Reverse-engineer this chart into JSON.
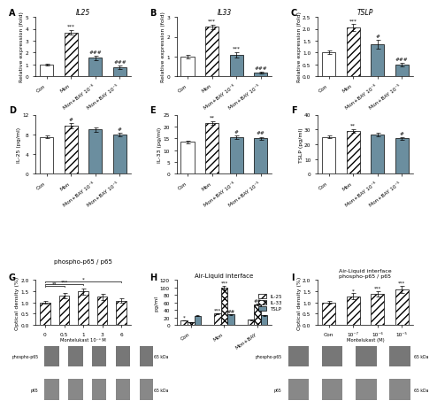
{
  "panel_A": {
    "title": "IL25",
    "ylabel": "Relative expression (fold)",
    "categories": [
      "Con",
      "Mon",
      "Mon+BAY 10⁻⁶",
      "Mon+BAY 10⁻⁵"
    ],
    "values": [
      1.0,
      3.7,
      1.55,
      0.75
    ],
    "errors": [
      0.08,
      0.18,
      0.2,
      0.12
    ],
    "colors": [
      "white",
      "white",
      "#6b8e9f",
      "#6b8e9f"
    ],
    "hatch": [
      "",
      "////",
      "",
      ""
    ],
    "ylim": [
      0,
      5
    ],
    "yticks": [
      0,
      1,
      2,
      3,
      4,
      5
    ],
    "sigs": [
      [
        1,
        "***"
      ],
      [
        2,
        "###"
      ],
      [
        3,
        "###"
      ]
    ]
  },
  "panel_B": {
    "title": "IL33",
    "ylabel": "Relative expression (fold)",
    "categories": [
      "Con",
      "Mon",
      "Mon+BAY 10⁻⁶",
      "Mon+BAY 10⁻⁵"
    ],
    "values": [
      1.0,
      2.5,
      1.08,
      0.18
    ],
    "errors": [
      0.08,
      0.12,
      0.15,
      0.05
    ],
    "colors": [
      "white",
      "white",
      "#6b8e9f",
      "#6b8e9f"
    ],
    "hatch": [
      "",
      "////",
      "",
      ""
    ],
    "ylim": [
      0,
      3
    ],
    "yticks": [
      0,
      1,
      2,
      3
    ],
    "sigs": [
      [
        1,
        "***"
      ],
      [
        2,
        "***"
      ],
      [
        3,
        "###"
      ]
    ]
  },
  "panel_C": {
    "title": "TSLP",
    "ylabel": "Relative expression (fold)",
    "categories": [
      "Con",
      "Mon",
      "Mon+BAY 10⁻⁶",
      "Mon+BAY 10⁻⁵"
    ],
    "values": [
      1.0,
      2.05,
      1.35,
      0.5
    ],
    "errors": [
      0.08,
      0.14,
      0.18,
      0.07
    ],
    "colors": [
      "white",
      "white",
      "#6b8e9f",
      "#6b8e9f"
    ],
    "hatch": [
      "",
      "////",
      "",
      ""
    ],
    "ylim": [
      0,
      2.5
    ],
    "yticks": [
      0.0,
      0.5,
      1.0,
      1.5,
      2.0,
      2.5
    ],
    "sigs": [
      [
        1,
        "***"
      ],
      [
        2,
        "#"
      ],
      [
        3,
        "###"
      ]
    ]
  },
  "panel_D": {
    "ylabel": "IL-25 (pg/ml)",
    "categories": [
      "Con",
      "Mon",
      "Mon+BAY 10⁻⁶",
      "Mon+BAY 10⁻⁵"
    ],
    "values": [
      7.5,
      9.8,
      9.0,
      8.0
    ],
    "errors": [
      0.3,
      0.5,
      0.4,
      0.35
    ],
    "colors": [
      "white",
      "white",
      "#6b8e9f",
      "#6b8e9f"
    ],
    "hatch": [
      "",
      "////",
      "",
      ""
    ],
    "ylim": [
      0,
      12
    ],
    "yticks": [
      0,
      4,
      8,
      12
    ],
    "sigs": [
      [
        1,
        "#"
      ],
      [
        3,
        "#"
      ]
    ]
  },
  "panel_E": {
    "ylabel": "IL-33 (pg/ml)",
    "categories": [
      "Con",
      "Mon",
      "Mon+BAY 10⁻⁶",
      "Mon+BAY 10⁻⁵"
    ],
    "values": [
      13.5,
      21.5,
      15.5,
      15.0
    ],
    "errors": [
      0.6,
      0.9,
      0.7,
      0.65
    ],
    "colors": [
      "white",
      "white",
      "#6b8e9f",
      "#6b8e9f"
    ],
    "hatch": [
      "",
      "////",
      "",
      ""
    ],
    "ylim": [
      0,
      25
    ],
    "yticks": [
      0,
      5,
      10,
      15,
      20,
      25
    ],
    "sigs": [
      [
        1,
        "**"
      ],
      [
        2,
        "#"
      ],
      [
        3,
        "##"
      ]
    ]
  },
  "panel_F": {
    "ylabel": "TSLP (pg/ml)",
    "categories": [
      "Con",
      "Mon",
      "Mon+BAY 10⁻⁶",
      "Mon+BAY 10⁻⁵"
    ],
    "values": [
      25.0,
      29.0,
      26.5,
      24.0
    ],
    "errors": [
      0.9,
      1.2,
      1.1,
      1.0
    ],
    "colors": [
      "white",
      "white",
      "#6b8e9f",
      "#6b8e9f"
    ],
    "hatch": [
      "",
      "////",
      "",
      ""
    ],
    "ylim": [
      0,
      40
    ],
    "yticks": [
      0,
      10,
      20,
      30,
      40
    ],
    "sigs": [
      [
        1,
        "**"
      ],
      [
        3,
        "#"
      ]
    ]
  },
  "panel_G": {
    "title": "phospho-p65 / p65",
    "ylabel": "Optical density (%)",
    "categories": [
      "0",
      "0.5",
      "1",
      "3",
      "6"
    ],
    "xlabel": "Montelukast 10⁻⁶ M",
    "values": [
      1.0,
      1.3,
      1.48,
      1.25,
      1.08
    ],
    "errors": [
      0.06,
      0.12,
      0.15,
      0.13,
      0.1
    ],
    "hatch": [
      "////",
      "////",
      "////",
      "////",
      "////"
    ],
    "ylim": [
      0,
      2.0
    ],
    "yticks": [
      0,
      0.5,
      1.0,
      1.5,
      2.0
    ],
    "bracket_pairs": [
      [
        0,
        1,
        "**"
      ],
      [
        0,
        2,
        "***"
      ],
      [
        0,
        4,
        "*"
      ]
    ]
  },
  "panel_H": {
    "title": "Air-Liquid interface",
    "ylabel": "pg/ml",
    "group_labels": [
      "Con",
      "Mon",
      "Mon+BAY"
    ],
    "series": [
      "IL-25",
      "IL-33",
      "TSLP"
    ],
    "values_by_series": [
      [
        12.0,
        30.0,
        13.5
      ],
      [
        8.0,
        100.0,
        55.0
      ],
      [
        25.0,
        28.0,
        26.0
      ]
    ],
    "errors_by_series": [
      [
        0.8,
        1.5,
        1.0
      ],
      [
        0.6,
        4.5,
        3.0
      ],
      [
        1.2,
        1.5,
        1.3
      ]
    ],
    "colors": [
      "white",
      "white",
      "#6b8e9f"
    ],
    "hatch": [
      "////",
      "xxxx",
      ""
    ],
    "ylim": [
      0,
      120
    ],
    "yticks": [
      0,
      20,
      40,
      60,
      80,
      100,
      120
    ],
    "sigs_by_bar": [
      [
        [
          0,
          0,
          "*"
        ],
        [
          0,
          1,
          "***"
        ]
      ],
      [
        [
          1,
          1,
          "***"
        ],
        [
          1,
          1,
          "##"
        ]
      ],
      [
        [
          2,
          1,
          "##"
        ]
      ]
    ]
  },
  "panel_I": {
    "title_line1": "Air-Liquid interface",
    "title_line2": "phospho-p65 / p65",
    "ylabel": "Optical density (%)",
    "categories": [
      "Con",
      "10⁻⁷",
      "10⁻⁶",
      "10⁻⁵"
    ],
    "xlabel": "Montelukast (M)",
    "values": [
      1.0,
      1.28,
      1.38,
      1.58
    ],
    "errors": [
      0.07,
      0.12,
      0.13,
      0.15
    ],
    "hatch": [
      "////",
      "////",
      "////",
      "////"
    ],
    "ylim": [
      0,
      2.0
    ],
    "yticks": [
      0,
      0.5,
      1.0,
      1.5,
      2.0
    ],
    "sigs": [
      [
        1,
        "*"
      ],
      [
        2,
        "***"
      ],
      [
        3,
        "***"
      ]
    ]
  },
  "legend_H": {
    "labels": [
      "IL-25",
      "IL-33",
      "TSLP"
    ],
    "colors": [
      "white",
      "white",
      "#6b8e9f"
    ],
    "hatch": [
      "////",
      "xxxx",
      ""
    ]
  },
  "blot_G": {
    "n_bands": 5,
    "band_color_top": "#777777",
    "band_color_bot": "#888888",
    "labels_left": [
      "phospho-p65",
      "p65"
    ],
    "labels_right": [
      "65 kDa",
      "65 kDa"
    ]
  },
  "blot_I": {
    "n_bands": 4,
    "band_color_top": "#777777",
    "band_color_bot": "#888888",
    "labels_left": [
      "phospho-p65",
      "p65"
    ],
    "labels_right": [
      "65 kDa",
      "65 kDa"
    ]
  }
}
